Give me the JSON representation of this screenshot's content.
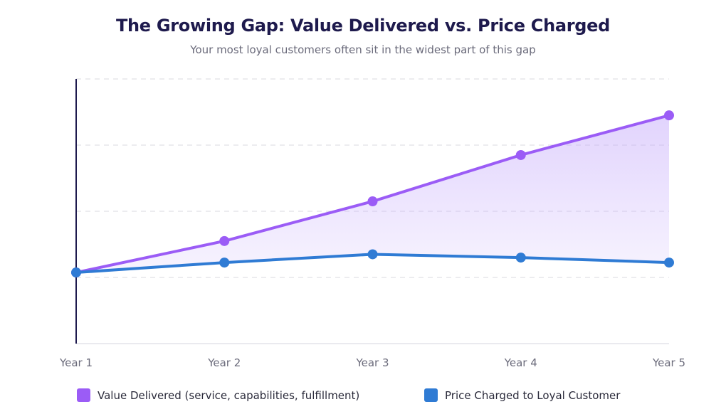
{
  "header": {
    "title": "The Growing Gap: Value Delivered vs. Price Charged",
    "subtitle": "Your most loyal customers often sit in the widest part of this gap"
  },
  "colors": {
    "value": "#9b5cf6",
    "price": "#2f7bd4",
    "axis": "#1e1a4d",
    "grid": "#e5e5ea",
    "gap_fill": "#c9b0fb"
  },
  "chart_data": {
    "type": "line",
    "title": "The Growing Gap: Value Delivered vs. Price Charged",
    "subtitle": "Your most loyal customers often sit in the widest part of this gap",
    "xlabel": "",
    "ylabel": "",
    "categories": [
      "Year 1",
      "Year 2",
      "Year 3",
      "Year 4",
      "Year 5"
    ],
    "series": [
      {
        "name": "Value Delivered (service, capabilities, fulfillment)",
        "values": [
          21.5,
          31,
          43,
          57,
          69
        ]
      },
      {
        "name": "Price Charged to Loyal Customer",
        "values": [
          21.5,
          24.5,
          27,
          26,
          24.5
        ]
      }
    ],
    "ylim": [
      0,
      80
    ],
    "yticks": [
      0,
      20,
      40,
      60,
      80
    ],
    "ytick_labels_visible": false,
    "grid": true,
    "shaded_gap_between_series": true,
    "legend_position": "bottom"
  },
  "legend": [
    {
      "label": "Value Delivered (service, capabilities, fulfillment)"
    },
    {
      "label": "Price Charged to Loyal Customer"
    }
  ]
}
